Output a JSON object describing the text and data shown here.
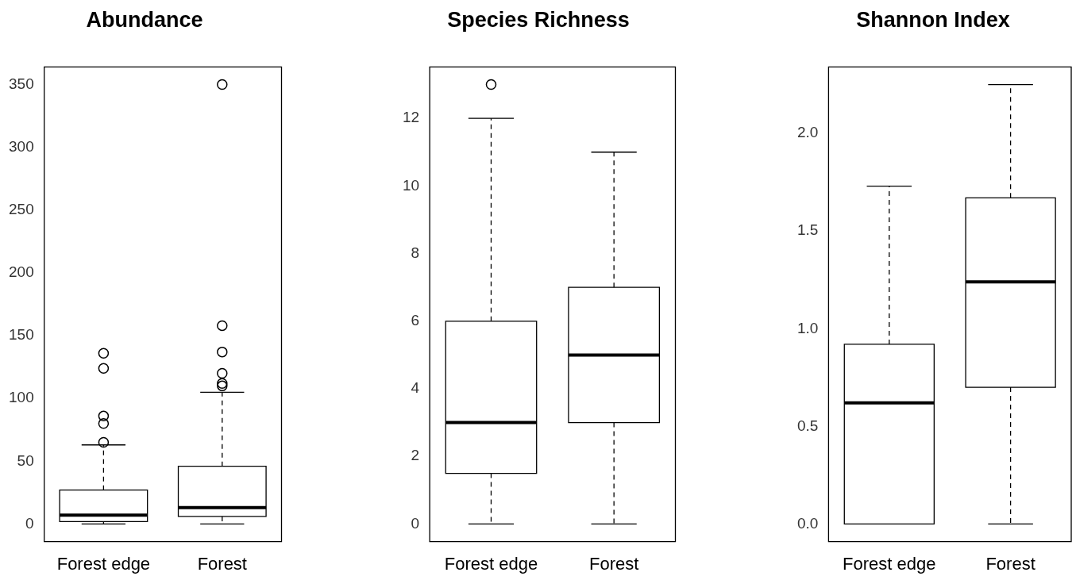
{
  "chart_data": [
    {
      "type": "box",
      "title": "Abundance",
      "categories": [
        "Forest edge",
        "Forest"
      ],
      "ylim": [
        -14,
        364
      ],
      "yticks": [
        0,
        50,
        100,
        150,
        200,
        250,
        300,
        350
      ],
      "boxes": [
        {
          "low": 0,
          "q1": 2,
          "median": 7,
          "q3": 27,
          "high": 63,
          "outliers": [
            65,
            80,
            86,
            124,
            136
          ]
        },
        {
          "low": 0,
          "q1": 6,
          "median": 13,
          "q3": 46,
          "high": 105,
          "outliers": [
            110,
            112,
            120,
            137,
            158,
            350
          ]
        }
      ]
    },
    {
      "type": "box",
      "title": "Species Richness",
      "categories": [
        "Forest edge",
        "Forest"
      ],
      "ylim": [
        -0.52,
        13.52
      ],
      "yticks": [
        0,
        2,
        4,
        6,
        8,
        10,
        12
      ],
      "boxes": [
        {
          "low": 0,
          "q1": 1.5,
          "median": 3,
          "q3": 6,
          "high": 12,
          "outliers": [
            13
          ]
        },
        {
          "low": 0,
          "q1": 3,
          "median": 5,
          "q3": 7,
          "high": 11
        }
      ]
    },
    {
      "type": "box",
      "title": "Shannon Index",
      "categories": [
        "Forest edge",
        "Forest"
      ],
      "ylim": [
        -0.09,
        2.34
      ],
      "yticks": [
        {
          "value": 0,
          "label": "0.0"
        },
        0.5,
        {
          "value": 1,
          "label": "1.0"
        },
        1.5,
        {
          "value": 2,
          "label": "2.0"
        }
      ],
      "boxes": [
        {
          "low": 0,
          "q1": 0,
          "median": 0.62,
          "q3": 0.92,
          "high": 1.73
        },
        {
          "low": 0,
          "q1": 0.7,
          "median": 1.24,
          "q3": 1.67,
          "high": 2.25
        }
      ]
    }
  ]
}
